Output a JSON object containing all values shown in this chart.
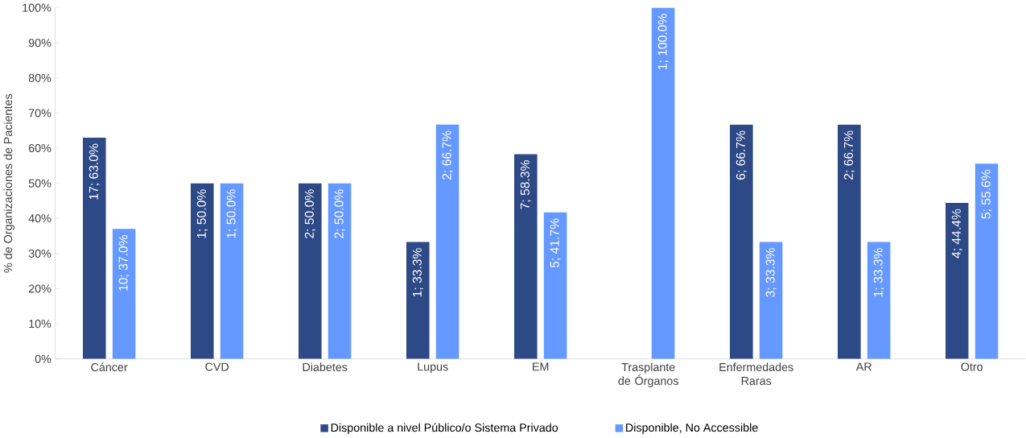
{
  "chart_data": {
    "type": "bar",
    "ylabel": "% de Organizaciones de Pacientes",
    "categories": [
      "Cáncer",
      "CVD",
      "Diabetes",
      "Lupus",
      "EM",
      "Trasplante de Órganos",
      "Enfermedades Raras",
      "AR",
      "Otro"
    ],
    "series": [
      {
        "name": "Disponible a nivel Público/o Sistema Privado",
        "color": "#2e4a86",
        "values": [
          63.0,
          50.0,
          50.0,
          33.3,
          58.3,
          null,
          66.7,
          66.7,
          44.4
        ],
        "value_labels": [
          "17; 63.0%",
          "1; 50.0%",
          "2; 50.0%",
          "1; 33.3%",
          "7; 58.3%",
          null,
          "6; 66.7%",
          "2; 66.7%",
          "4; 44.4%"
        ]
      },
      {
        "name": "Disponible, No Accessible",
        "color": "#6699ff",
        "values": [
          37.0,
          50.0,
          50.0,
          66.7,
          41.7,
          100.0,
          33.3,
          33.3,
          55.6
        ],
        "value_labels": [
          "10; 37.0%",
          "1; 50.0%",
          "2; 50.0%",
          "2; 66.7%",
          "5; 41.7%",
          "1; 100.0%",
          "3; 33.3%",
          "1; 33.3%",
          "5; 55.6%"
        ]
      }
    ],
    "ylim": [
      0,
      100
    ],
    "yticks": [
      {
        "value": 0,
        "label": "0%"
      },
      {
        "value": 10,
        "label": "10%"
      },
      {
        "value": 20,
        "label": "20%"
      },
      {
        "value": 30,
        "label": "30%"
      },
      {
        "value": 40,
        "label": "40%"
      },
      {
        "value": 50,
        "label": "50%"
      },
      {
        "value": 60,
        "label": "60%"
      },
      {
        "value": 70,
        "label": "70%"
      },
      {
        "value": 80,
        "label": "80%"
      },
      {
        "value": 90,
        "label": "90%"
      },
      {
        "value": 100,
        "label": "100%"
      }
    ],
    "legend": "bottom"
  }
}
